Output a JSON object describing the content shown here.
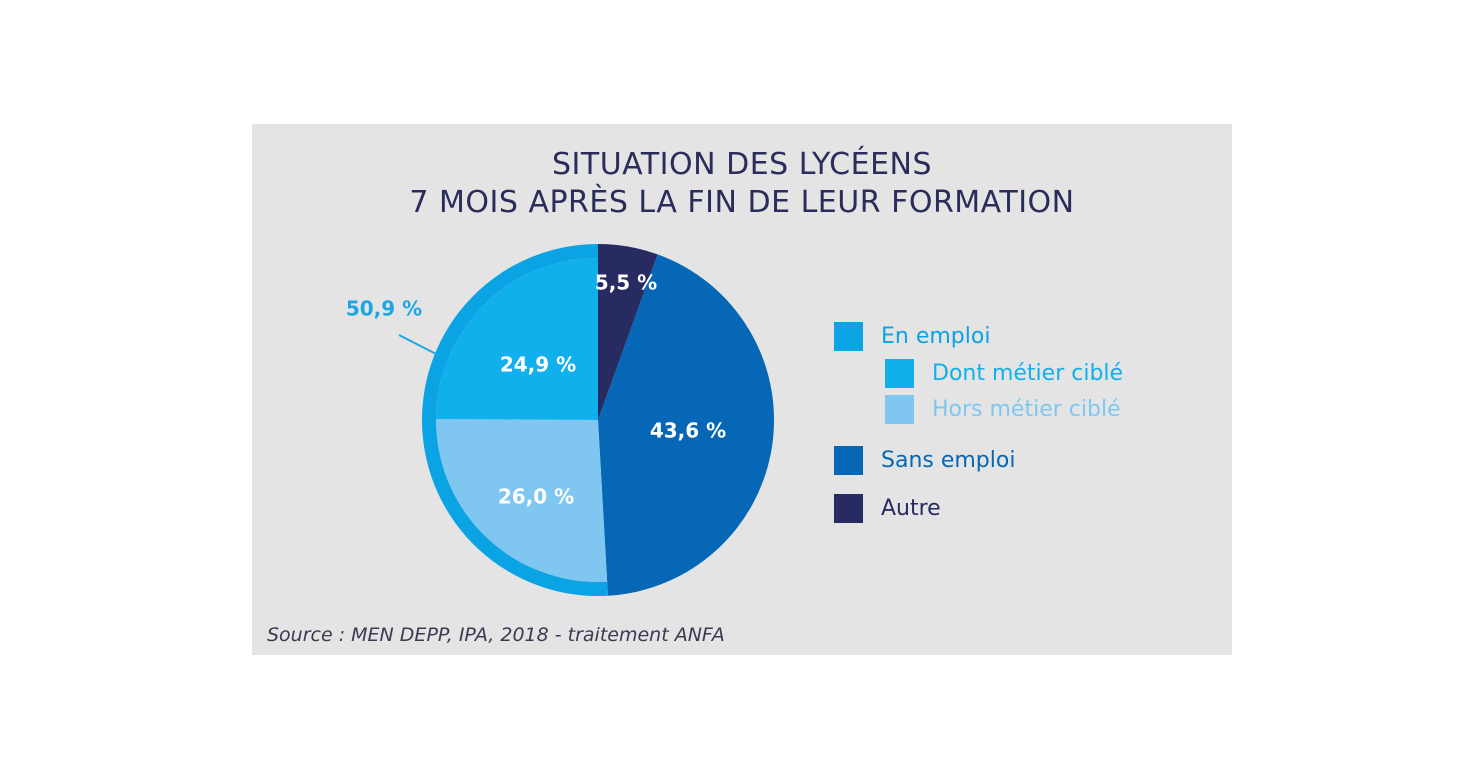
{
  "title_lines": [
    "SITUATION DES LYCÉENS",
    "7 MOIS APRÈS LA FIN DE LEUR FORMATION"
  ],
  "source": "Source : MEN DEPP, IPA, 2018 - traitement ANFA",
  "colors": {
    "en_emploi": "#0aa3e4",
    "dont_metier_cible": "#10b0ec",
    "hors_metier_cible": "#7fc7f0",
    "sans_emploi": "#0567b5",
    "autre": "#272b61",
    "callout": "#1ea6e4",
    "panel": "#e4e4e5",
    "title": "#2a2c5a"
  },
  "chart_data": {
    "type": "pie",
    "title": "SITUATION DES LYCÉENS 7 MOIS APRÈS LA FIN DE LEUR FORMATION",
    "slices": [
      {
        "name": "Autre",
        "value": 5.5,
        "label": "5,5 %"
      },
      {
        "name": "Sans emploi",
        "value": 43.6,
        "label": "43,6 %"
      },
      {
        "name": "Hors métier ciblé",
        "value": 26.0,
        "label": "26,0 %",
        "group": "En emploi"
      },
      {
        "name": "Dont métier ciblé",
        "value": 24.9,
        "label": "24,9 %",
        "group": "En emploi"
      }
    ],
    "groups": [
      {
        "name": "En emploi",
        "value": 50.9,
        "label": "50,9 %"
      }
    ],
    "legend": [
      {
        "label": "En emploi",
        "color_key": "en_emploi",
        "level": 0
      },
      {
        "label": "Dont métier ciblé",
        "color_key": "dont_metier_cible",
        "level": 1
      },
      {
        "label": "Hors métier ciblé",
        "color_key": "hors_metier_cible",
        "level": 1
      },
      {
        "label": "Sans emploi",
        "color_key": "sans_emploi",
        "level": 0
      },
      {
        "label": "Autre",
        "color_key": "autre",
        "level": 0
      }
    ],
    "legend_position": "right"
  }
}
